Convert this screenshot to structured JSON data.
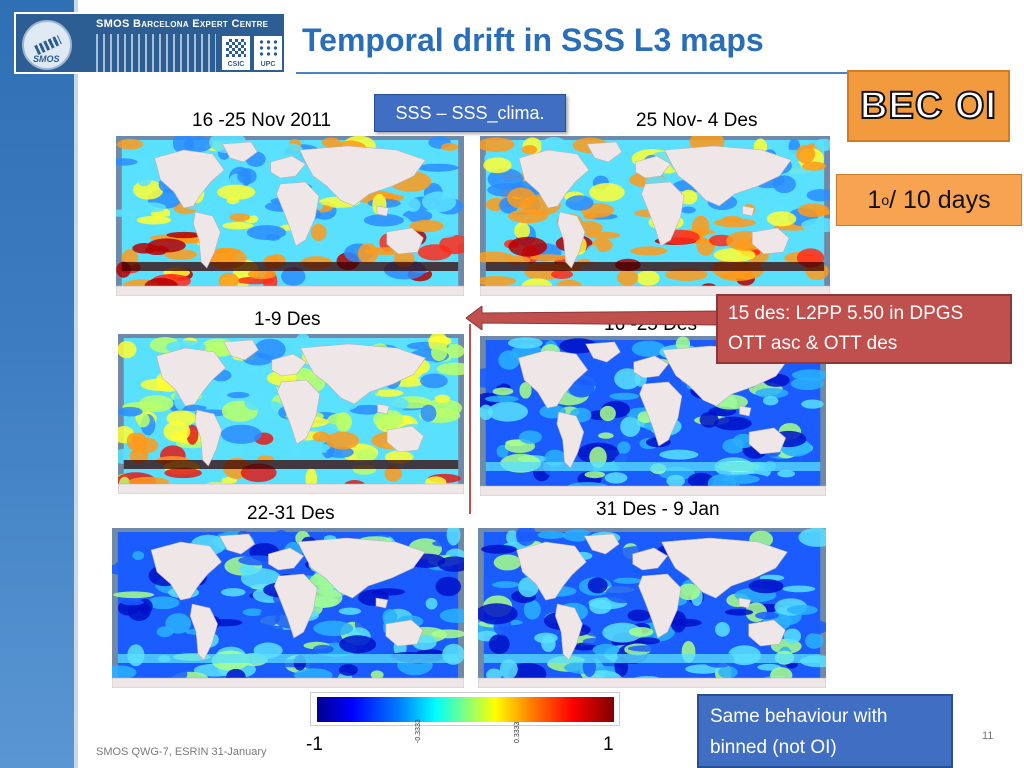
{
  "header": {
    "logo_title": "SMOS Barcelona Expert Centre",
    "logo_smos": "SMOS",
    "logo_csic": "CSIC",
    "logo_upc": "UPC",
    "title": "Temporal drift in SSS L3 maps"
  },
  "badges": {
    "product": "BEC OI",
    "resolution_main": "1",
    "resolution_sup": "o",
    "resolution_rest": " / 10 days",
    "variable": "SSS – SSS_clima."
  },
  "note": {
    "line1": "15 des: L2PP 5.50 in DPGS",
    "line2": "OTT asc & OTT des"
  },
  "maps": [
    {
      "label": "16 -25 Nov 2011",
      "anomaly": "strong-positive"
    },
    {
      "label": "25 Nov- 4 Des",
      "anomaly": "strong-positive"
    },
    {
      "label": "1-9 Des",
      "anomaly": "positive"
    },
    {
      "label": "16 -25 Des",
      "anomaly": "negative"
    },
    {
      "label": "22-31 Des",
      "anomaly": "negative"
    },
    {
      "label": "31 Des - 9 Jan",
      "anomaly": "negative"
    }
  ],
  "colorbar": {
    "min": "-1",
    "max": "1",
    "tick_neg": "-0.3333",
    "tick_pos": "0.3333",
    "colors": [
      "#00008f",
      "#0000ff",
      "#0080ff",
      "#00ffff",
      "#80ff80",
      "#ffff00",
      "#ff8000",
      "#ff0000",
      "#800000"
    ]
  },
  "summary": {
    "line1": "Same behaviour  with",
    "line2": "binned (not OI)"
  },
  "footer": {
    "text": "SMOS QWG-7, ESRIN 31-January",
    "page": "11"
  },
  "colors": {
    "title": "#2a6db8",
    "accent_blue": "#3f6ec2",
    "accent_orange": "#f29a3e",
    "accent_red": "#c0504d",
    "land": "#efe6e8",
    "ocean_bg": "#6f8aa8"
  }
}
